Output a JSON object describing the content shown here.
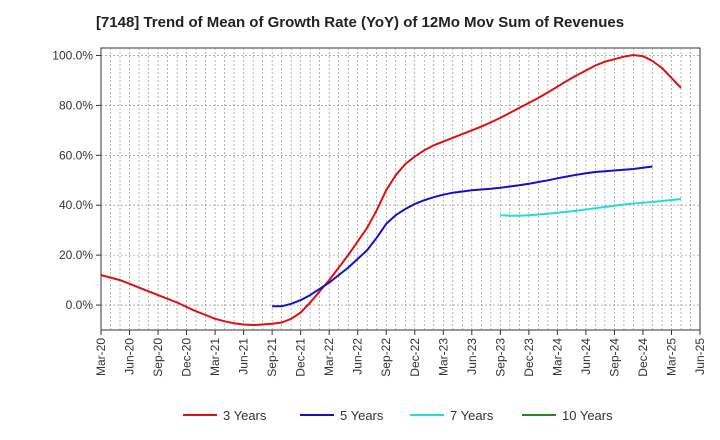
{
  "chart_data": {
    "type": "line",
    "title": "[7148]  Trend of Mean of Growth Rate (YoY) of 12Mo Mov Sum of Revenues",
    "xlabel": "",
    "ylabel": "",
    "y_unit": "%",
    "ylim": [
      -10,
      103
    ],
    "y_ticks": [
      0,
      20,
      40,
      60,
      80,
      100
    ],
    "y_tick_labels": [
      "0.0%",
      "20.0%",
      "40.0%",
      "60.0%",
      "80.0%",
      "100.0%"
    ],
    "x_ticks": [
      "Mar-20",
      "Jun-20",
      "Sep-20",
      "Dec-20",
      "Mar-21",
      "Jun-21",
      "Sep-21",
      "Dec-21",
      "Mar-22",
      "Jun-22",
      "Sep-22",
      "Dec-22",
      "Mar-23",
      "Jun-23",
      "Sep-23",
      "Dec-23",
      "Mar-24",
      "Jun-24",
      "Sep-24",
      "Dec-24",
      "Mar-25",
      "Jun-25"
    ],
    "grid": true,
    "legend_position": "bottom",
    "series": [
      {
        "name": "3 Years",
        "color": "#dd1111",
        "start_month_index": 0,
        "values": [
          12,
          11,
          10,
          8.5,
          7,
          5.5,
          4,
          2.5,
          1,
          -0.8,
          -2.5,
          -4,
          -5.5,
          -6.5,
          -7.3,
          -7.8,
          -8,
          -7.8,
          -7.5,
          -7,
          -5.5,
          -3,
          1,
          5.5,
          10,
          15,
          20,
          25.5,
          31,
          38,
          46,
          52,
          56.5,
          59.5,
          62,
          64,
          65.5,
          67,
          68.5,
          70,
          71.5,
          73.2,
          75,
          77,
          79,
          81,
          83,
          85.2,
          87.5,
          89.8,
          92,
          94,
          96,
          97.5,
          98.5,
          99.5,
          100.2,
          99.7,
          97.8,
          95,
          91,
          87
        ]
      },
      {
        "name": "5 Years",
        "color": "#1111cc",
        "start_month_index": 18,
        "values": [
          -0.5,
          -0.5,
          0.5,
          2,
          4,
          6.5,
          9,
          12,
          15,
          18.5,
          22,
          27,
          32.5,
          36,
          38.5,
          40.5,
          42,
          43.2,
          44.2,
          45,
          45.5,
          46,
          46.3,
          46.6,
          47,
          47.5,
          48,
          48.6,
          49.3,
          50,
          50.8,
          51.5,
          52.2,
          52.8,
          53.3,
          53.6,
          53.9,
          54.2,
          54.5,
          55,
          55.5
        ]
      },
      {
        "name": "7 Years",
        "color": "#22dddd",
        "start_month_index": 42,
        "values": [
          36,
          35.8,
          35.8,
          36,
          36.3,
          36.6,
          37,
          37.4,
          37.8,
          38.3,
          38.8,
          39.3,
          39.8,
          40.3,
          40.7,
          41,
          41.3,
          41.7,
          42.1,
          42.5
        ]
      },
      {
        "name": "10 Years",
        "color": "#228822",
        "start_month_index": 0,
        "values": []
      }
    ]
  }
}
